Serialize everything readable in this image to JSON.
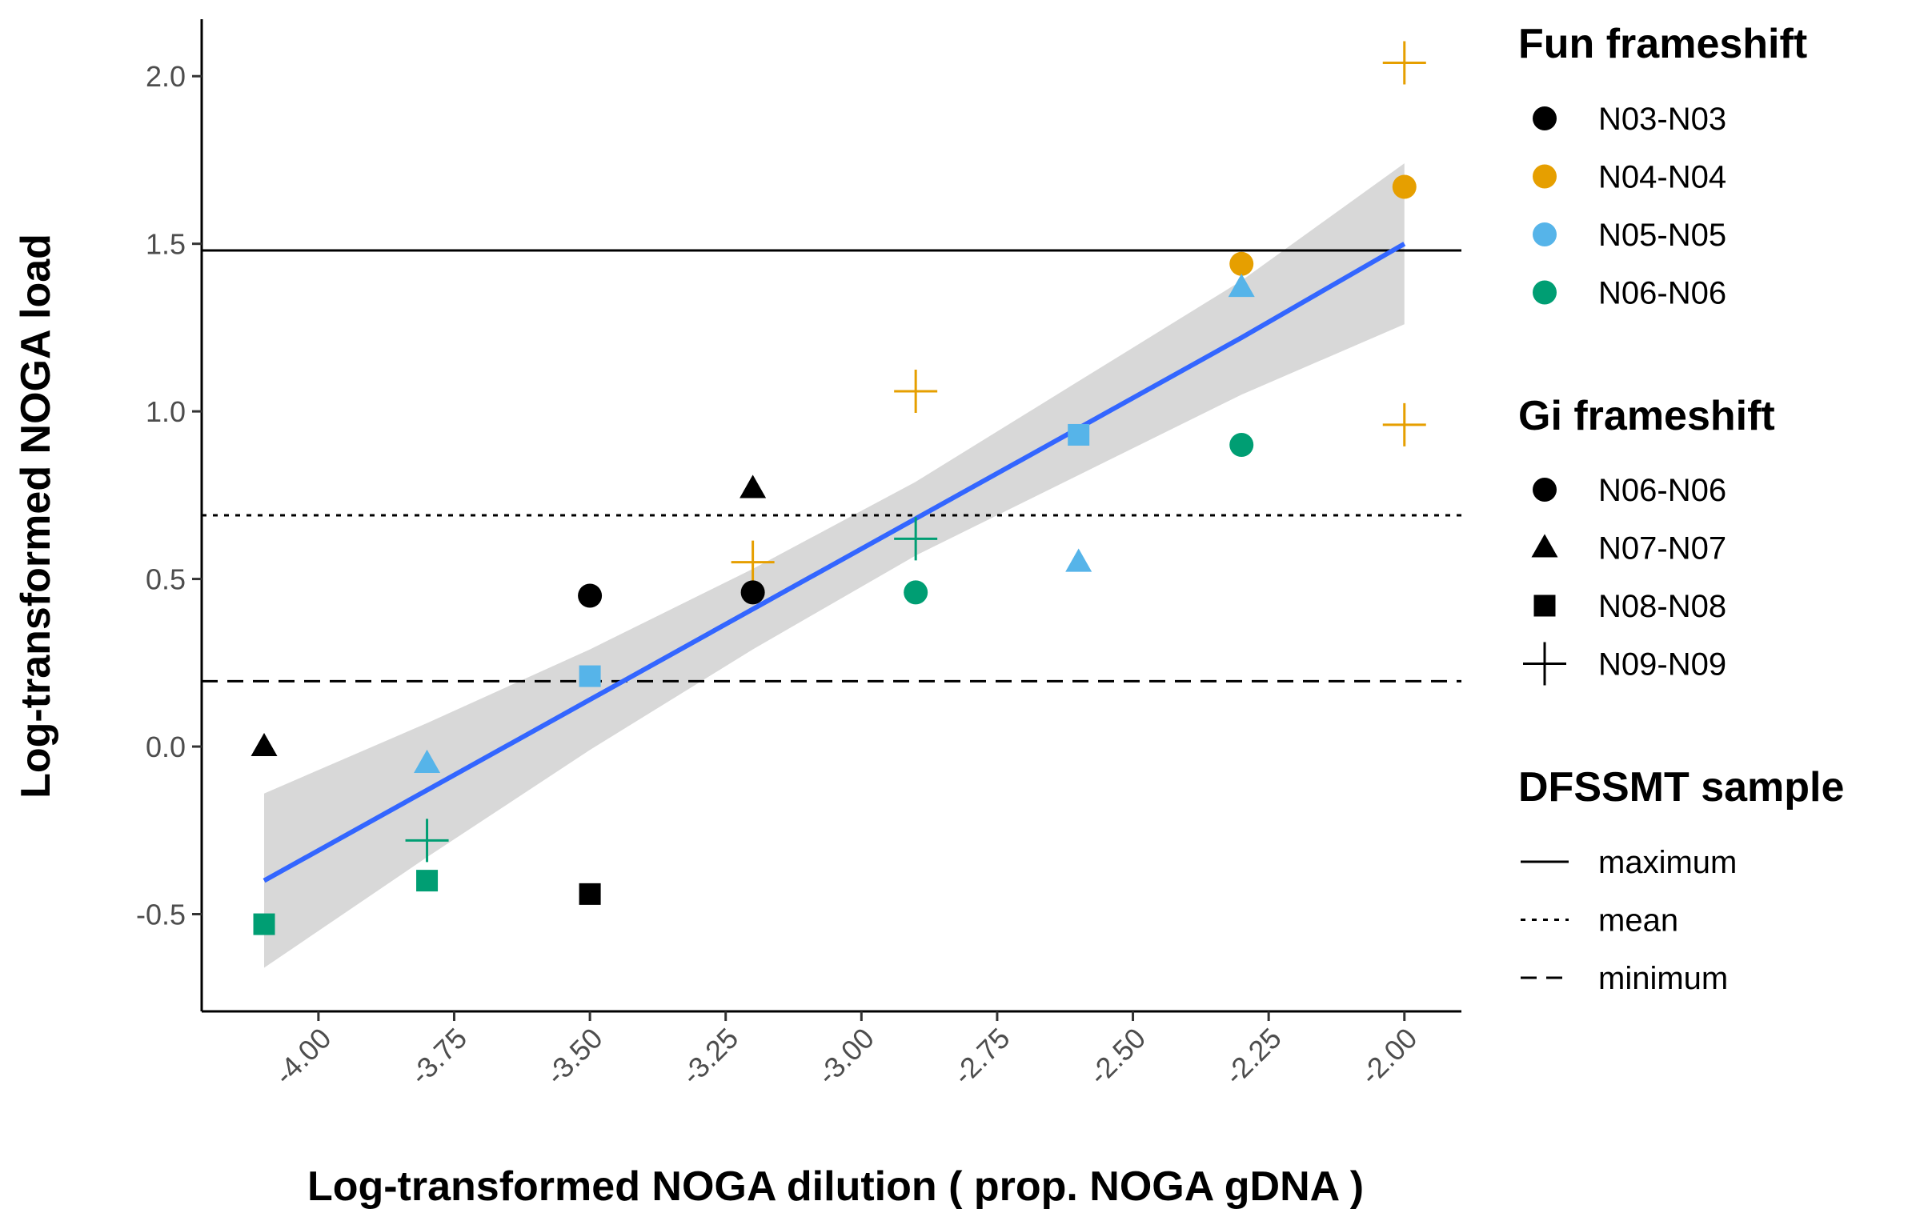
{
  "chart_data": {
    "type": "scatter",
    "xlabel": "Log-transformed NOGA dilution ( prop. NOGA gDNA )",
    "ylabel": "Log-transformed NOGA load",
    "xlim": [
      -4.215,
      -1.895
    ],
    "ylim": [
      -0.79,
      2.17
    ],
    "x_ticks": [
      {
        "value": -4.0,
        "label": "-4.00"
      },
      {
        "value": -3.75,
        "label": "-3.75"
      },
      {
        "value": -3.5,
        "label": "-3.50"
      },
      {
        "value": -3.25,
        "label": "-3.25"
      },
      {
        "value": -3.0,
        "label": "-3.00"
      },
      {
        "value": -2.75,
        "label": "-2.75"
      },
      {
        "value": -2.5,
        "label": "-2.50"
      },
      {
        "value": -2.25,
        "label": "-2.25"
      },
      {
        "value": -2.0,
        "label": "-2.00"
      }
    ],
    "y_ticks": [
      {
        "value": -0.5,
        "label": "-0.5"
      },
      {
        "value": 0.0,
        "label": "0.0"
      },
      {
        "value": 0.5,
        "label": "0.5"
      },
      {
        "value": 1.0,
        "label": "1.0"
      },
      {
        "value": 1.5,
        "label": "1.5"
      },
      {
        "value": 2.0,
        "label": "2.0"
      }
    ],
    "grid": false,
    "colors": {
      "N03-N03": "#000000",
      "N04-N04": "#E69F00",
      "N05-N05": "#56B4E9",
      "N06-N06": "#009E73",
      "fit_line": "#3366FF",
      "ribbon": "#BEBEBE"
    },
    "points": [
      {
        "x": -4.1,
        "y": 0.0,
        "fun": "N03-N03",
        "gi": "N07-N07"
      },
      {
        "x": -4.1,
        "y": -0.53,
        "fun": "N06-N06",
        "gi": "N08-N08"
      },
      {
        "x": -3.8,
        "y": -0.05,
        "fun": "N05-N05",
        "gi": "N07-N07"
      },
      {
        "x": -3.8,
        "y": -0.28,
        "fun": "N06-N06",
        "gi": "N09-N09"
      },
      {
        "x": -3.8,
        "y": -0.4,
        "fun": "N06-N06",
        "gi": "N08-N08"
      },
      {
        "x": -3.5,
        "y": 0.45,
        "fun": "N03-N03",
        "gi": "N06-N06"
      },
      {
        "x": -3.5,
        "y": 0.21,
        "fun": "N05-N05",
        "gi": "N08-N08"
      },
      {
        "x": -3.5,
        "y": -0.44,
        "fun": "N03-N03",
        "gi": "N08-N08"
      },
      {
        "x": -3.2,
        "y": 0.77,
        "fun": "N03-N03",
        "gi": "N07-N07"
      },
      {
        "x": -3.2,
        "y": 0.55,
        "fun": "N04-N04",
        "gi": "N09-N09"
      },
      {
        "x": -3.2,
        "y": 0.46,
        "fun": "N03-N03",
        "gi": "N06-N06"
      },
      {
        "x": -2.9,
        "y": 1.06,
        "fun": "N04-N04",
        "gi": "N09-N09"
      },
      {
        "x": -2.9,
        "y": 0.62,
        "fun": "N06-N06",
        "gi": "N09-N09"
      },
      {
        "x": -2.9,
        "y": 0.46,
        "fun": "N06-N06",
        "gi": "N06-N06"
      },
      {
        "x": -2.6,
        "y": 0.93,
        "fun": "N05-N05",
        "gi": "N08-N08"
      },
      {
        "x": -2.6,
        "y": 0.55,
        "fun": "N05-N05",
        "gi": "N07-N07"
      },
      {
        "x": -2.3,
        "y": 1.44,
        "fun": "N04-N04",
        "gi": "N06-N06"
      },
      {
        "x": -2.3,
        "y": 1.37,
        "fun": "N05-N05",
        "gi": "N07-N07"
      },
      {
        "x": -2.3,
        "y": 0.9,
        "fun": "N06-N06",
        "gi": "N06-N06"
      },
      {
        "x": -2.0,
        "y": 2.04,
        "fun": "N04-N04",
        "gi": "N09-N09"
      },
      {
        "x": -2.0,
        "y": 1.67,
        "fun": "N04-N04",
        "gi": "N06-N06"
      },
      {
        "x": -2.0,
        "y": 0.96,
        "fun": "N04-N04",
        "gi": "N09-N09"
      }
    ],
    "fit": {
      "x": [
        -4.1,
        -3.8,
        -3.5,
        -3.2,
        -2.9,
        -2.6,
        -2.3,
        -2.0
      ],
      "y": [
        -0.4,
        -0.13,
        0.14,
        0.41,
        0.68,
        0.95,
        1.22,
        1.5
      ],
      "lower": [
        -0.66,
        -0.33,
        -0.01,
        0.29,
        0.57,
        0.81,
        1.05,
        1.26
      ],
      "upper": [
        -0.14,
        0.07,
        0.29,
        0.53,
        0.79,
        1.09,
        1.39,
        1.74
      ]
    },
    "hlines": [
      {
        "name": "maximum",
        "y": 1.48,
        "linetype": "solid"
      },
      {
        "name": "mean",
        "y": 0.69,
        "linetype": "dotted"
      },
      {
        "name": "minimum",
        "y": 0.195,
        "linetype": "dashed"
      }
    ],
    "legends": [
      {
        "title": "Fun frameshift",
        "kind": "color",
        "items": [
          {
            "label": "N03-N03",
            "color": "#000000"
          },
          {
            "label": "N04-N04",
            "color": "#E69F00"
          },
          {
            "label": "N05-N05",
            "color": "#56B4E9"
          },
          {
            "label": "N06-N06",
            "color": "#009E73"
          }
        ]
      },
      {
        "title": "Gi frameshift",
        "kind": "shape",
        "items": [
          {
            "label": "N06-N06",
            "shape": "circle"
          },
          {
            "label": "N07-N07",
            "shape": "triangle"
          },
          {
            "label": "N08-N08",
            "shape": "square"
          },
          {
            "label": "N09-N09",
            "shape": "plus"
          }
        ]
      },
      {
        "title": "DFSSMT sample",
        "kind": "linetype",
        "items": [
          {
            "label": "maximum",
            "linetype": "solid"
          },
          {
            "label": "mean",
            "linetype": "dotted"
          },
          {
            "label": "minimum",
            "linetype": "dashed"
          }
        ]
      }
    ],
    "legend_position": "right"
  }
}
